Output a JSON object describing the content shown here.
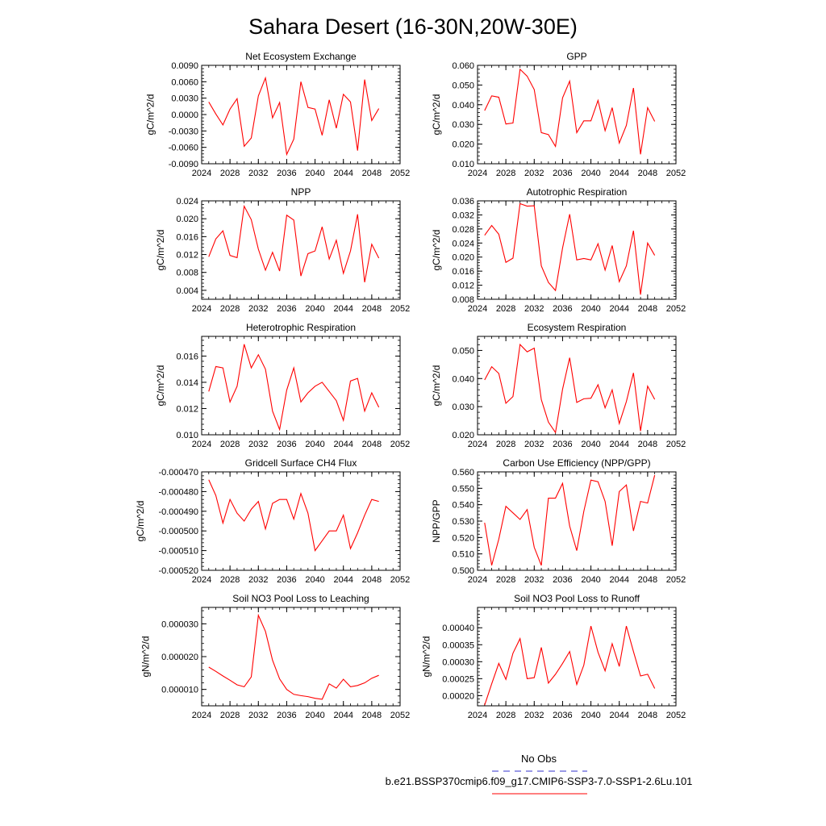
{
  "page_title": "Sahara Desert (16-30N,20W-30E)",
  "legend": {
    "obs_label": "No Obs",
    "obs_color": "#3333cc",
    "model_label": "b.e21.BSSP370cmip6.f09_g17.CMIP6-SSP3-7.0-SSP1-2.6Lu.101",
    "model_color": "#ff0000"
  },
  "chart_data": [
    {
      "type": "line",
      "title": "Net Ecosystem Exchange",
      "ylabel": "gC/m^2/d",
      "xlim": [
        2024,
        2052
      ],
      "ylim": [
        -0.009,
        0.009
      ],
      "xticks": [
        "2024",
        "2028",
        "2032",
        "2036",
        "2040",
        "2044",
        "2048",
        "2052"
      ],
      "yticks": [
        "-0.0090",
        "-0.0060",
        "-0.0030",
        "0.0000",
        "0.0030",
        "0.0060",
        "0.0090"
      ],
      "ytick_values": [
        -0.009,
        -0.006,
        -0.003,
        0.0,
        0.003,
        0.006,
        0.009
      ],
      "x": [
        2025,
        2026,
        2027,
        2028,
        2029,
        2030,
        2031,
        2032,
        2033,
        2034,
        2035,
        2036,
        2037,
        2038,
        2039,
        2040,
        2041,
        2042,
        2043,
        2044,
        2045,
        2046,
        2047,
        2048,
        2049
      ],
      "values": [
        0.0023,
        0.0001,
        -0.0019,
        0.001,
        0.0029,
        -0.0058,
        -0.0043,
        0.0034,
        0.0067,
        -0.0006,
        0.0022,
        -0.0073,
        -0.0045,
        0.006,
        0.0013,
        0.001,
        -0.0038,
        0.0027,
        -0.0025,
        0.0037,
        0.0023,
        -0.0066,
        0.0064,
        -0.0011,
        0.0011
      ]
    },
    {
      "type": "line",
      "title": "GPP",
      "ylabel": "gC/m^2/d",
      "xlim": [
        2024,
        2052
      ],
      "ylim": [
        0.01,
        0.06
      ],
      "xticks": [
        "2024",
        "2028",
        "2032",
        "2036",
        "2040",
        "2044",
        "2048",
        "2052"
      ],
      "yticks": [
        "0.010",
        "0.020",
        "0.030",
        "0.040",
        "0.050",
        "0.060"
      ],
      "ytick_values": [
        0.01,
        0.02,
        0.03,
        0.04,
        0.05,
        0.06
      ],
      "x": [
        2025,
        2026,
        2027,
        2028,
        2029,
        2030,
        2031,
        2032,
        2033,
        2034,
        2035,
        2036,
        2037,
        2038,
        2039,
        2040,
        2041,
        2042,
        2043,
        2044,
        2045,
        2046,
        2047,
        2048,
        2049
      ],
      "values": [
        0.037,
        0.0445,
        0.0438,
        0.0302,
        0.0307,
        0.058,
        0.0545,
        0.0477,
        0.0258,
        0.0248,
        0.0188,
        0.0435,
        0.052,
        0.0258,
        0.0318,
        0.0318,
        0.0422,
        0.0268,
        0.0385,
        0.0205,
        0.0295,
        0.0485,
        0.0148,
        0.0385,
        0.0315
      ]
    },
    {
      "type": "line",
      "title": "NPP",
      "ylabel": "gC/m^2/d",
      "xlim": [
        2024,
        2052
      ],
      "ylim": [
        0.002,
        0.024
      ],
      "xticks": [
        "2024",
        "2028",
        "2032",
        "2036",
        "2040",
        "2044",
        "2048",
        "2052"
      ],
      "yticks": [
        "0.004",
        "0.008",
        "0.012",
        "0.016",
        "0.020",
        "0.024"
      ],
      "ytick_values": [
        0.004,
        0.008,
        0.012,
        0.016,
        0.02,
        0.024
      ],
      "x": [
        2025,
        2026,
        2027,
        2028,
        2029,
        2030,
        2031,
        2032,
        2033,
        2034,
        2035,
        2036,
        2037,
        2038,
        2039,
        2040,
        2041,
        2042,
        2043,
        2044,
        2045,
        2046,
        2047,
        2048,
        2049
      ],
      "values": [
        0.0115,
        0.0155,
        0.0173,
        0.0118,
        0.0113,
        0.0228,
        0.0198,
        0.0132,
        0.0085,
        0.0125,
        0.0083,
        0.0208,
        0.0197,
        0.0072,
        0.0122,
        0.0128,
        0.0182,
        0.011,
        0.0152,
        0.0078,
        0.0128,
        0.021,
        0.0058,
        0.0143,
        0.0112
      ]
    },
    {
      "type": "line",
      "title": "Autotrophic Respiration",
      "ylabel": "gC/m^2/d",
      "xlim": [
        2024,
        2052
      ],
      "ylim": [
        0.008,
        0.036
      ],
      "xticks": [
        "2024",
        "2028",
        "2032",
        "2036",
        "2040",
        "2044",
        "2048",
        "2052"
      ],
      "yticks": [
        "0.008",
        "0.012",
        "0.016",
        "0.020",
        "0.024",
        "0.028",
        "0.032",
        "0.036"
      ],
      "ytick_values": [
        0.008,
        0.012,
        0.016,
        0.02,
        0.024,
        0.028,
        0.032,
        0.036
      ],
      "x": [
        2025,
        2026,
        2027,
        2028,
        2029,
        2030,
        2031,
        2032,
        2033,
        2034,
        2035,
        2036,
        2037,
        2038,
        2039,
        2040,
        2041,
        2042,
        2043,
        2044,
        2045,
        2046,
        2047,
        2048,
        2049
      ],
      "values": [
        0.0262,
        0.029,
        0.0265,
        0.0185,
        0.0197,
        0.0352,
        0.0345,
        0.0346,
        0.0175,
        0.0128,
        0.0105,
        0.0226,
        0.0322,
        0.0192,
        0.0196,
        0.0192,
        0.0238,
        0.0163,
        0.0233,
        0.013,
        0.0175,
        0.0275,
        0.0093,
        0.024,
        0.0205
      ]
    },
    {
      "type": "line",
      "title": "Heterotrophic Respiration",
      "ylabel": "gC/m^2/d",
      "xlim": [
        2024,
        2052
      ],
      "ylim": [
        0.01,
        0.0175
      ],
      "xticks": [
        "2024",
        "2028",
        "2032",
        "2036",
        "2040",
        "2044",
        "2048",
        "2052"
      ],
      "yticks": [
        "0.010",
        "0.012",
        "0.014",
        "0.016"
      ],
      "ytick_values": [
        0.01,
        0.012,
        0.014,
        0.016
      ],
      "x": [
        2025,
        2026,
        2027,
        2028,
        2029,
        2030,
        2031,
        2032,
        2033,
        2034,
        2035,
        2036,
        2037,
        2038,
        2039,
        2040,
        2041,
        2042,
        2043,
        2044,
        2045,
        2046,
        2047,
        2048,
        2049
      ],
      "values": [
        0.0133,
        0.0152,
        0.0151,
        0.0125,
        0.0137,
        0.0169,
        0.0151,
        0.0161,
        0.015,
        0.0118,
        0.0104,
        0.0134,
        0.0151,
        0.0125,
        0.0132,
        0.0137,
        0.014,
        0.0133,
        0.0126,
        0.0111,
        0.0141,
        0.0143,
        0.0118,
        0.0132,
        0.0121
      ]
    },
    {
      "type": "line",
      "title": "Ecosystem Respiration",
      "ylabel": "gC/m^2/d",
      "xlim": [
        2024,
        2052
      ],
      "ylim": [
        0.02,
        0.055
      ],
      "xticks": [
        "2024",
        "2028",
        "2032",
        "2036",
        "2040",
        "2044",
        "2048",
        "2052"
      ],
      "yticks": [
        "0.020",
        "0.030",
        "0.040",
        "0.050"
      ],
      "ytick_values": [
        0.02,
        0.03,
        0.04,
        0.05
      ],
      "x": [
        2025,
        2026,
        2027,
        2028,
        2029,
        2030,
        2031,
        2032,
        2033,
        2034,
        2035,
        2036,
        2037,
        2038,
        2039,
        2040,
        2041,
        2042,
        2043,
        2044,
        2045,
        2046,
        2047,
        2048,
        2049
      ],
      "values": [
        0.0395,
        0.0442,
        0.0418,
        0.0312,
        0.0336,
        0.0521,
        0.0495,
        0.0508,
        0.0325,
        0.0245,
        0.0208,
        0.0362,
        0.0474,
        0.0315,
        0.0328,
        0.033,
        0.0378,
        0.0296,
        0.036,
        0.024,
        0.0318,
        0.042,
        0.0213,
        0.0373,
        0.0326
      ]
    },
    {
      "type": "line",
      "title": "Gridcell Surface CH4 Flux",
      "ylabel": "gC/m^2/d",
      "xlim": [
        2024,
        2052
      ],
      "ylim": [
        -0.00052,
        -0.00047
      ],
      "xticks": [
        "2024",
        "2028",
        "2032",
        "2036",
        "2040",
        "2044",
        "2048",
        "2052"
      ],
      "yticks": [
        "-0.000520",
        "-0.000510",
        "-0.000500",
        "-0.000490",
        "-0.000480",
        "-0.000470"
      ],
      "ytick_values": [
        -0.00052,
        -0.00051,
        -0.0005,
        -0.00049,
        -0.00048,
        -0.00047
      ],
      "x": [
        2025,
        2026,
        2027,
        2028,
        2029,
        2030,
        2031,
        2032,
        2033,
        2034,
        2035,
        2036,
        2037,
        2038,
        2039,
        2040,
        2041,
        2042,
        2043,
        2044,
        2045,
        2046,
        2047,
        2048,
        2049
      ],
      "values": [
        -0.000474,
        -0.000482,
        -0.000496,
        -0.000484,
        -0.000491,
        -0.000495,
        -0.000489,
        -0.000485,
        -0.000499,
        -0.000486,
        -0.000484,
        -0.000484,
        -0.000494,
        -0.000481,
        -0.000491,
        -0.00051,
        -0.000505,
        -0.0005,
        -0.0005,
        -0.000492,
        -0.000509,
        -0.000501,
        -0.000492,
        -0.000484,
        -0.000485
      ]
    },
    {
      "type": "line",
      "title": "Carbon Use Efficiency (NPP/GPP)",
      "ylabel": "NPP/GPP",
      "xlim": [
        2024,
        2052
      ],
      "ylim": [
        0.5,
        0.56
      ],
      "xticks": [
        "2024",
        "2028",
        "2032",
        "2036",
        "2040",
        "2044",
        "2048",
        "2052"
      ],
      "yticks": [
        "0.500",
        "0.510",
        "0.520",
        "0.530",
        "0.540",
        "0.550",
        "0.560"
      ],
      "ytick_values": [
        0.5,
        0.51,
        0.52,
        0.53,
        0.54,
        0.55,
        0.56
      ],
      "x": [
        2025,
        2026,
        2027,
        2028,
        2029,
        2030,
        2031,
        2032,
        2033,
        2034,
        2035,
        2036,
        2037,
        2038,
        2039,
        2040,
        2041,
        2042,
        2043,
        2044,
        2045,
        2046,
        2047,
        2048,
        2049
      ],
      "values": [
        0.529,
        0.503,
        0.519,
        0.539,
        0.535,
        0.531,
        0.537,
        0.514,
        0.503,
        0.544,
        0.544,
        0.553,
        0.527,
        0.512,
        0.536,
        0.555,
        0.554,
        0.542,
        0.515,
        0.548,
        0.552,
        0.524,
        0.542,
        0.541,
        0.558
      ]
    },
    {
      "type": "line",
      "title": "Soil NO3 Pool Loss to Leaching",
      "ylabel": "gN/m^2/d",
      "xlim": [
        2024,
        2052
      ],
      "ylim": [
        5e-06,
        3.5e-05
      ],
      "xticks": [
        "2024",
        "2028",
        "2032",
        "2036",
        "2040",
        "2044",
        "2048",
        "2052"
      ],
      "yticks": [
        "0.000010",
        "0.000020",
        "0.000030"
      ],
      "ytick_values": [
        1e-05,
        2e-05,
        3e-05
      ],
      "x": [
        2025,
        2026,
        2027,
        2028,
        2029,
        2030,
        2031,
        2032,
        2033,
        2034,
        2035,
        2036,
        2037,
        2038,
        2039,
        2040,
        2041,
        2042,
        2043,
        2044,
        2045,
        2046,
        2047,
        2048,
        2049
      ],
      "values": [
        1.68e-05,
        1.55e-05,
        1.41e-05,
        1.28e-05,
        1.14e-05,
        1.08e-05,
        1.38e-05,
        3.26e-05,
        2.77e-05,
        1.89e-05,
        1.32e-05,
        1e-05,
        8.5e-06,
        8.1e-06,
        7.8e-06,
        7.3e-06,
        7e-06,
        1.17e-05,
        1.04e-05,
        1.31e-05,
        1.08e-05,
        1.12e-05,
        1.2e-05,
        1.34e-05,
        1.43e-05
      ]
    },
    {
      "type": "line",
      "title": "Soil NO3 Pool Loss to Runoff",
      "ylabel": "gN/m^2/d",
      "xlim": [
        2024,
        2052
      ],
      "ylim": [
        0.00017,
        0.00046
      ],
      "xticks": [
        "2024",
        "2028",
        "2032",
        "2036",
        "2040",
        "2044",
        "2048",
        "2052"
      ],
      "yticks": [
        "0.00020",
        "0.00025",
        "0.00030",
        "0.00035",
        "0.00040"
      ],
      "ytick_values": [
        0.0002,
        0.00025,
        0.0003,
        0.00035,
        0.0004
      ],
      "x": [
        2025,
        2026,
        2027,
        2028,
        2029,
        2030,
        2031,
        2032,
        2033,
        2034,
        2035,
        2036,
        2037,
        2038,
        2039,
        2040,
        2041,
        2042,
        2043,
        2044,
        2045,
        2046,
        2047,
        2048,
        2049
      ],
      "values": [
        0.000172,
        0.000235,
        0.000295,
        0.000248,
        0.000325,
        0.000368,
        0.00025,
        0.000253,
        0.000342,
        0.000237,
        0.000263,
        0.000295,
        0.00033,
        0.000233,
        0.00029,
        0.000405,
        0.000328,
        0.000273,
        0.000353,
        0.000286,
        0.000405,
        0.00033,
        0.000258,
        0.000263,
        0.000221
      ]
    }
  ]
}
